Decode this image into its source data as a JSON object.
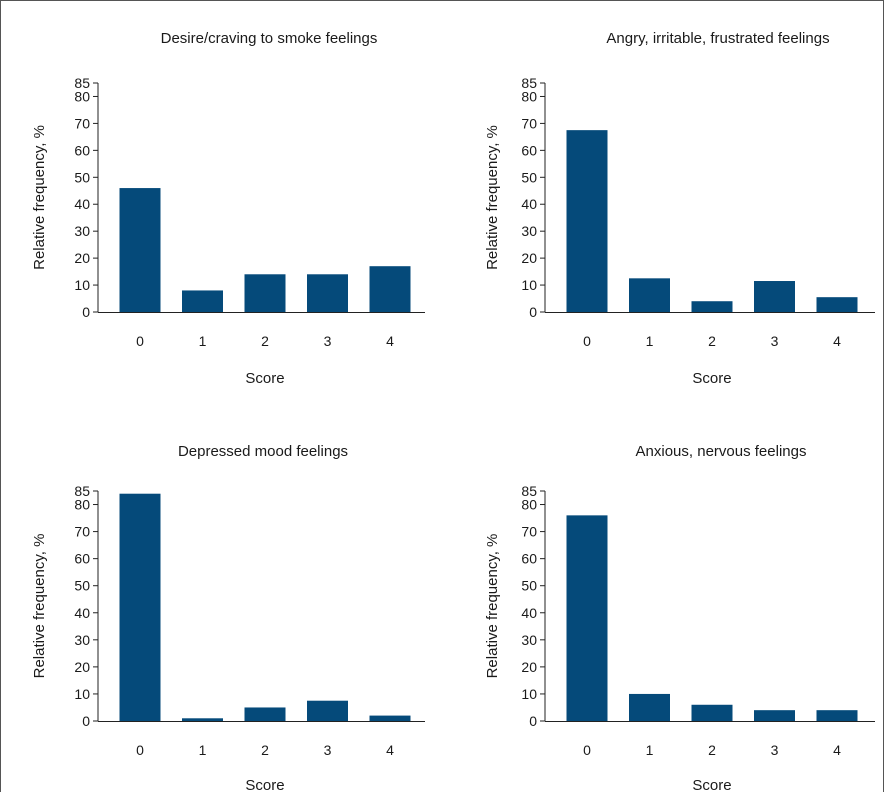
{
  "chart_data": [
    {
      "type": "bar",
      "title": "Desire/craving to smoke feelings",
      "xlabel": "Score",
      "ylabel": "Relative frequency, %",
      "categories": [
        "0",
        "1",
        "2",
        "3",
        "4"
      ],
      "values": [
        46,
        8,
        14,
        14,
        17
      ],
      "ylim": [
        0,
        85
      ],
      "yticks": [
        0,
        10,
        20,
        30,
        40,
        50,
        60,
        70,
        80,
        85
      ],
      "grid": false,
      "bar_color": "#054a7a"
    },
    {
      "type": "bar",
      "title": "Angry, irritable, frustrated feelings",
      "xlabel": "Score",
      "ylabel": "Relative frequency, %",
      "categories": [
        "0",
        "1",
        "2",
        "3",
        "4"
      ],
      "values": [
        67.5,
        12.5,
        4,
        11.5,
        5.5
      ],
      "ylim": [
        0,
        85
      ],
      "yticks": [
        0,
        10,
        20,
        30,
        40,
        50,
        60,
        70,
        80,
        85
      ],
      "grid": false,
      "bar_color": "#054a7a"
    },
    {
      "type": "bar",
      "title": "Depressed mood feelings",
      "xlabel": "Score",
      "ylabel": "Relative frequency, %",
      "categories": [
        "0",
        "1",
        "2",
        "3",
        "4"
      ],
      "values": [
        84,
        1,
        5,
        7.5,
        2
      ],
      "ylim": [
        0,
        85
      ],
      "yticks": [
        0,
        10,
        20,
        30,
        40,
        50,
        60,
        70,
        80,
        85
      ],
      "grid": false,
      "bar_color": "#054a7a"
    },
    {
      "type": "bar",
      "title": "Anxious, nervous feelings",
      "xlabel": "Score",
      "ylabel": "Relative frequency, %",
      "categories": [
        "0",
        "1",
        "2",
        "3",
        "4"
      ],
      "values": [
        76,
        10,
        6,
        4,
        4
      ],
      "ylim": [
        0,
        85
      ],
      "yticks": [
        0,
        10,
        20,
        30,
        40,
        50,
        60,
        70,
        80,
        85
      ],
      "grid": false,
      "bar_color": "#054a7a"
    }
  ]
}
